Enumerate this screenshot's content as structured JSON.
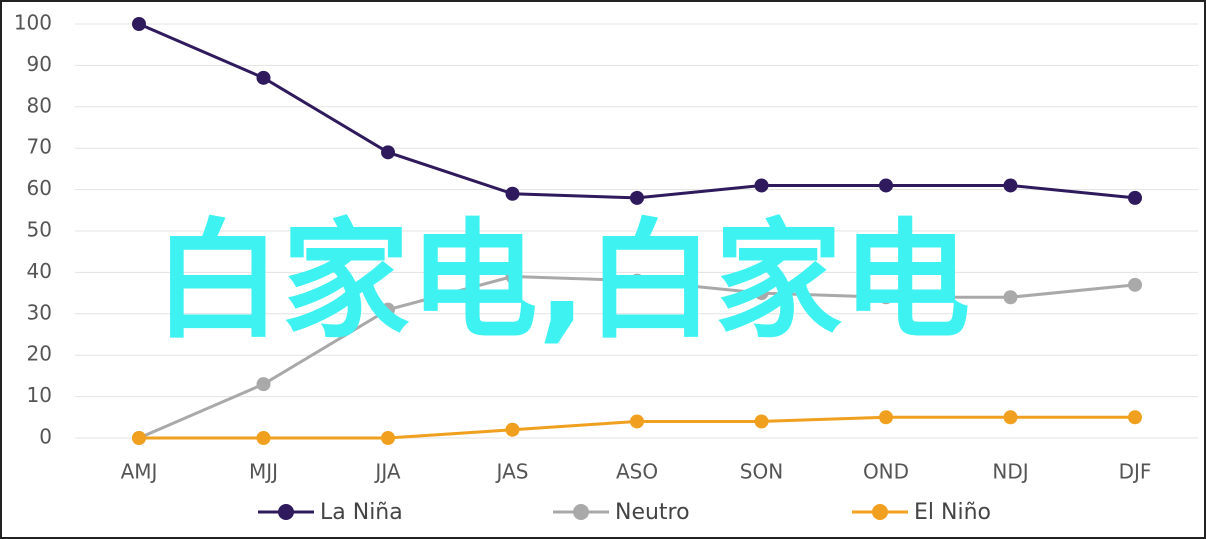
{
  "chart_data": {
    "type": "line",
    "annotation": "白家电,白家电",
    "categories": [
      "AMJ",
      "MJJ",
      "JJA",
      "JAS",
      "ASO",
      "SON",
      "OND",
      "NDJ",
      "DJF"
    ],
    "series": [
      {
        "name": "La Niña",
        "color": "#2e1a5c",
        "values": [
          100,
          87,
          69,
          59,
          58,
          61,
          61,
          61,
          58
        ]
      },
      {
        "name": "Neutro",
        "color": "#a9a9a9",
        "values": [
          0,
          13,
          31,
          39,
          38,
          35,
          34,
          34,
          37
        ]
      },
      {
        "name": "El Niño",
        "color": "#f0a01e",
        "values": [
          0,
          0,
          0,
          2,
          4,
          4,
          5,
          5,
          5
        ]
      }
    ],
    "ylim": [
      0,
      100
    ],
    "yticks": [
      0,
      10,
      20,
      30,
      40,
      50,
      60,
      70,
      80,
      90,
      100
    ],
    "grid": true,
    "legend": "bottom"
  }
}
